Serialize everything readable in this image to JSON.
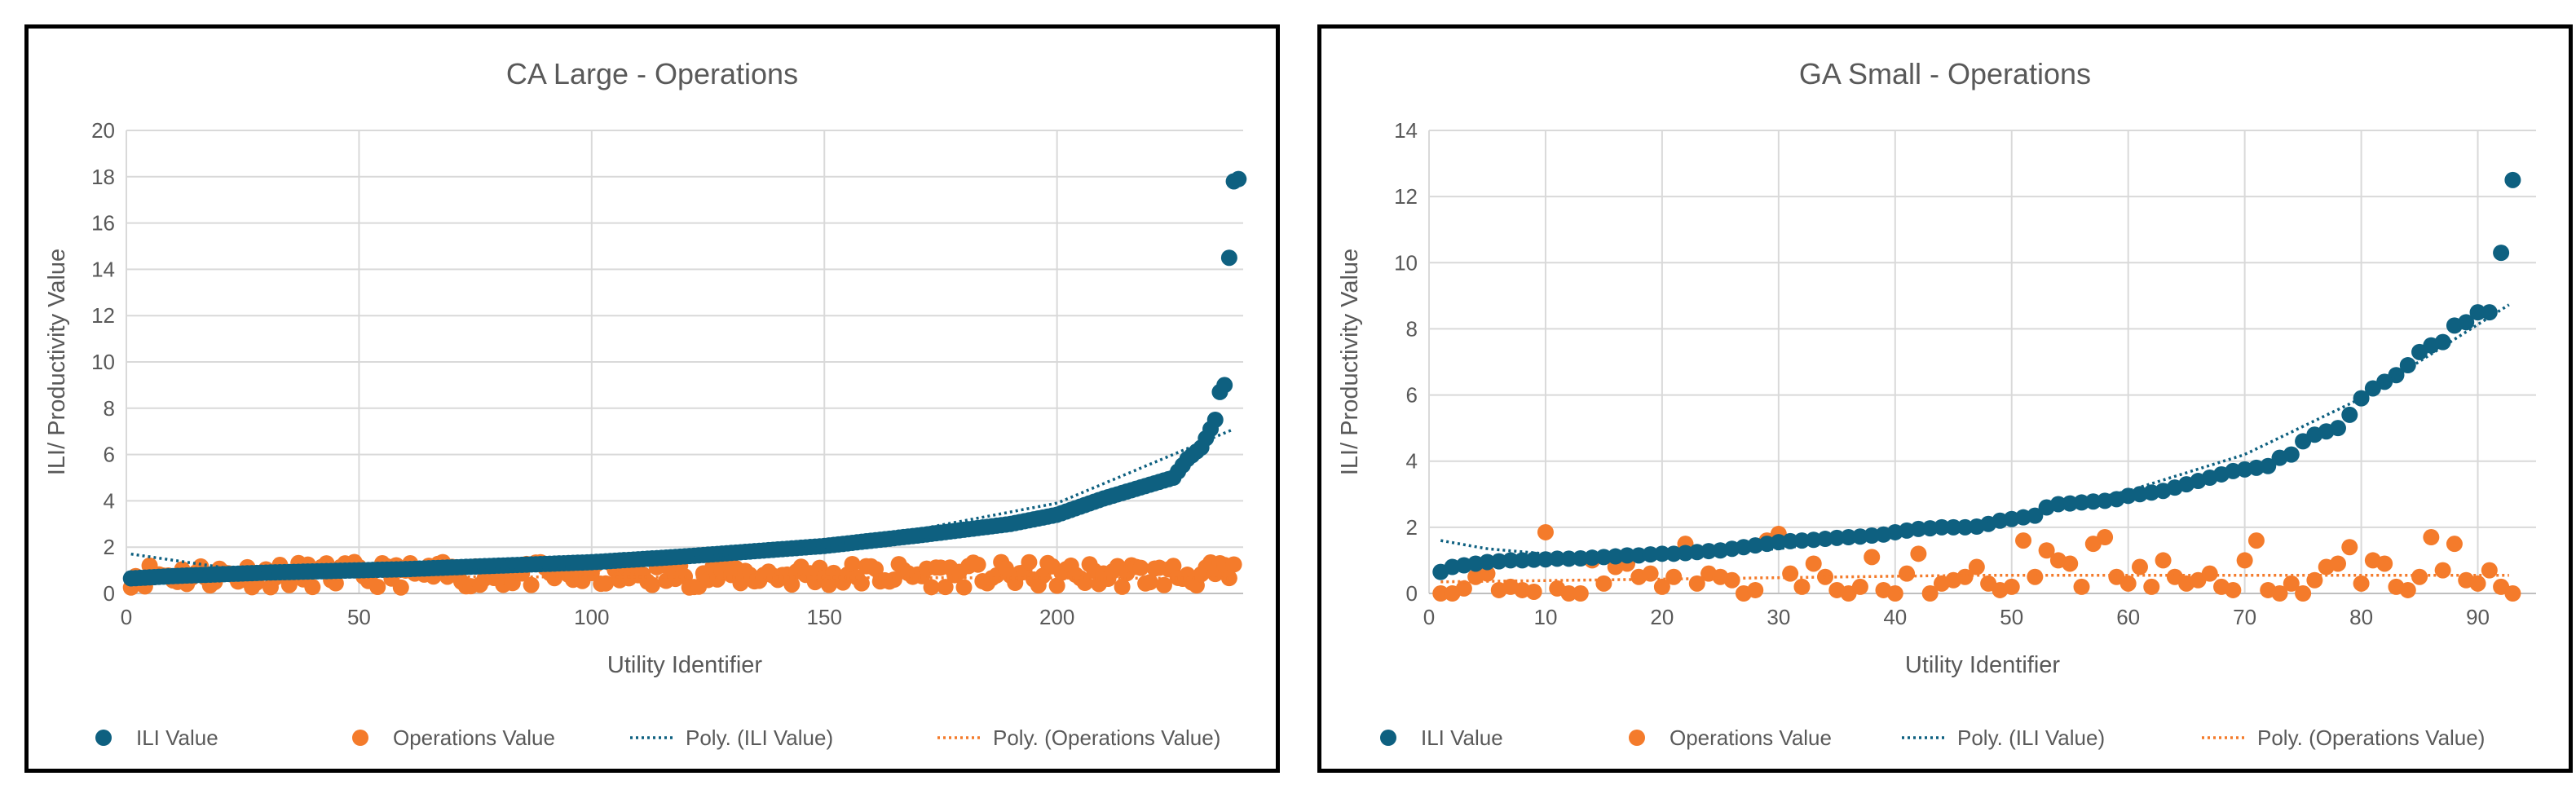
{
  "colors": {
    "ili": "#0e6080",
    "ops": "#f47b2b",
    "grid": "#d9d9d9",
    "text": "#595959"
  },
  "chart_data": [
    {
      "type": "scatter",
      "title": "CA Large - Operations",
      "xlabel": "Utility Identifier",
      "ylabel": "ILI/ Productivity Value",
      "xlim": [
        0,
        240
      ],
      "ylim": [
        0,
        20
      ],
      "xticks": [
        0,
        50,
        100,
        150,
        200
      ],
      "yticks": [
        0,
        2,
        4,
        6,
        8,
        10,
        12,
        14,
        16,
        18,
        20
      ],
      "grid": true,
      "legend_position": "bottom",
      "n_points": 238,
      "series": [
        {
          "name": "ILI Value",
          "kind": "points",
          "sampled_curve": [
            [
              1,
              0.65
            ],
            [
              10,
              0.75
            ],
            [
              30,
              0.9
            ],
            [
              60,
              1.05
            ],
            [
              100,
              1.35
            ],
            [
              120,
              1.6
            ],
            [
              150,
              2.05
            ],
            [
              170,
              2.5
            ],
            [
              190,
              3.0
            ],
            [
              200,
              3.4
            ],
            [
              210,
              4.1
            ],
            [
              220,
              4.7
            ],
            [
              225,
              5.0
            ],
            [
              228,
              5.8
            ],
            [
              231,
              6.3
            ],
            [
              234,
              7.5
            ],
            [
              235,
              8.7
            ],
            [
              236,
              9.0
            ]
          ],
          "outliers": [
            [
              237,
              14.5
            ],
            [
              238,
              17.8
            ],
            [
              239,
              17.9
            ]
          ]
        },
        {
          "name": "Operations Value",
          "kind": "points",
          "mean_level": 0.75,
          "spread": 0.55
        },
        {
          "name": "Poly. (ILI Value)",
          "kind": "trendline",
          "points": [
            [
              1,
              1.7
            ],
            [
              30,
              0.85
            ],
            [
              60,
              0.9
            ],
            [
              100,
              1.2
            ],
            [
              150,
              2.0
            ],
            [
              200,
              3.9
            ],
            [
              238,
              7.1
            ]
          ]
        },
        {
          "name": "Poly. (Operations Value)",
          "kind": "trendline",
          "points": [
            [
              1,
              0.75
            ],
            [
              120,
              0.7
            ],
            [
              238,
              0.65
            ]
          ]
        }
      ]
    },
    {
      "type": "scatter",
      "title": "GA Small - Operations",
      "xlabel": "Utility Identifier",
      "ylabel": "ILI/ Productivity Value",
      "xlim": [
        0,
        95
      ],
      "ylim": [
        0,
        14
      ],
      "xticks": [
        0,
        10,
        20,
        30,
        40,
        50,
        60,
        70,
        80,
        90
      ],
      "yticks": [
        0,
        2,
        4,
        6,
        8,
        10,
        12,
        14
      ],
      "grid": true,
      "legend_position": "bottom",
      "series": [
        {
          "name": "ILI Value",
          "kind": "points",
          "x": [
            1,
            2,
            3,
            4,
            5,
            6,
            7,
            8,
            9,
            10,
            11,
            12,
            13,
            14,
            15,
            16,
            17,
            18,
            19,
            20,
            21,
            22,
            23,
            24,
            25,
            26,
            27,
            28,
            29,
            30,
            31,
            32,
            33,
            34,
            35,
            36,
            37,
            38,
            39,
            40,
            41,
            42,
            43,
            44,
            45,
            46,
            47,
            48,
            49,
            50,
            51,
            52,
            53,
            54,
            55,
            56,
            57,
            58,
            59,
            60,
            61,
            62,
            63,
            64,
            65,
            66,
            67,
            68,
            69,
            70,
            71,
            72,
            73,
            74,
            75,
            76,
            77,
            78,
            79,
            80,
            81,
            82,
            83,
            84,
            85,
            86,
            87,
            88,
            89,
            90,
            91,
            92,
            93
          ],
          "y": [
            0.65,
            0.8,
            0.85,
            0.9,
            0.95,
            0.97,
            1.0,
            1.0,
            1.02,
            1.03,
            1.05,
            1.05,
            1.06,
            1.08,
            1.1,
            1.12,
            1.15,
            1.15,
            1.18,
            1.2,
            1.2,
            1.22,
            1.25,
            1.28,
            1.3,
            1.35,
            1.4,
            1.45,
            1.5,
            1.55,
            1.58,
            1.6,
            1.62,
            1.65,
            1.68,
            1.7,
            1.72,
            1.75,
            1.78,
            1.85,
            1.9,
            1.95,
            1.97,
            2.0,
            2.0,
            2.0,
            2.02,
            2.1,
            2.2,
            2.25,
            2.3,
            2.35,
            2.6,
            2.7,
            2.72,
            2.75,
            2.78,
            2.8,
            2.85,
            2.95,
            3.0,
            3.05,
            3.1,
            3.2,
            3.3,
            3.4,
            3.5,
            3.6,
            3.7,
            3.75,
            3.8,
            3.85,
            4.1,
            4.2,
            4.6,
            4.8,
            4.9,
            5.0,
            5.4,
            5.9,
            6.2,
            6.4,
            6.6,
            6.9,
            7.3,
            7.5,
            7.6,
            8.1,
            8.2,
            8.5,
            8.5,
            10.3,
            12.5
          ]
        },
        {
          "name": "Operations Value",
          "kind": "points",
          "x": [
            1,
            2,
            3,
            4,
            5,
            6,
            7,
            8,
            9,
            10,
            11,
            12,
            13,
            14,
            15,
            16,
            17,
            18,
            19,
            20,
            21,
            22,
            23,
            24,
            25,
            26,
            27,
            28,
            29,
            30,
            31,
            32,
            33,
            34,
            35,
            36,
            37,
            38,
            39,
            40,
            41,
            42,
            43,
            44,
            45,
            46,
            47,
            48,
            49,
            50,
            51,
            52,
            53,
            54,
            55,
            56,
            57,
            58,
            59,
            60,
            61,
            62,
            63,
            64,
            65,
            66,
            67,
            68,
            69,
            70,
            71,
            72,
            73,
            74,
            75,
            76,
            77,
            78,
            79,
            80,
            81,
            82,
            83,
            84,
            85,
            86,
            87,
            88,
            89,
            90,
            91,
            92,
            93
          ],
          "y": [
            0.0,
            0.0,
            0.15,
            0.5,
            0.6,
            0.1,
            0.2,
            0.1,
            0.05,
            1.85,
            0.15,
            0.0,
            0.0,
            1.0,
            0.3,
            0.8,
            0.9,
            0.5,
            0.6,
            0.2,
            0.5,
            1.5,
            0.3,
            0.6,
            0.5,
            0.4,
            0.0,
            0.1,
            1.6,
            1.8,
            0.6,
            0.2,
            0.9,
            0.5,
            0.1,
            0.0,
            0.2,
            1.1,
            0.1,
            0.0,
            0.6,
            1.2,
            0.0,
            0.3,
            0.4,
            0.5,
            0.8,
            0.3,
            0.1,
            0.2,
            1.6,
            0.5,
            1.3,
            1.0,
            0.9,
            0.2,
            1.5,
            1.7,
            0.5,
            0.3,
            0.8,
            0.2,
            1.0,
            0.5,
            0.3,
            0.4,
            0.6,
            0.2,
            0.1,
            1.0,
            1.6,
            0.1,
            0.0,
            0.3,
            0.0,
            0.4,
            0.8,
            0.9,
            1.4,
            0.3,
            1.0,
            0.9,
            0.2,
            0.1,
            0.5,
            1.7,
            0.7,
            1.5,
            0.4,
            0.3,
            0.7,
            0.2,
            0.0
          ]
        },
        {
          "name": "Poly. (ILI Value)",
          "kind": "trendline",
          "points": [
            [
              1,
              1.6
            ],
            [
              5,
              1.35
            ],
            [
              10,
              1.2
            ],
            [
              20,
              1.15
            ],
            [
              30,
              1.35
            ],
            [
              40,
              1.8
            ],
            [
              50,
              2.3
            ],
            [
              60,
              3.1
            ],
            [
              70,
              4.2
            ],
            [
              80,
              5.9
            ],
            [
              93,
              8.8
            ]
          ]
        },
        {
          "name": "Poly. (Operations Value)",
          "kind": "trendline",
          "points": [
            [
              1,
              0.35
            ],
            [
              47,
              0.55
            ],
            [
              93,
              0.55
            ]
          ]
        }
      ]
    }
  ]
}
